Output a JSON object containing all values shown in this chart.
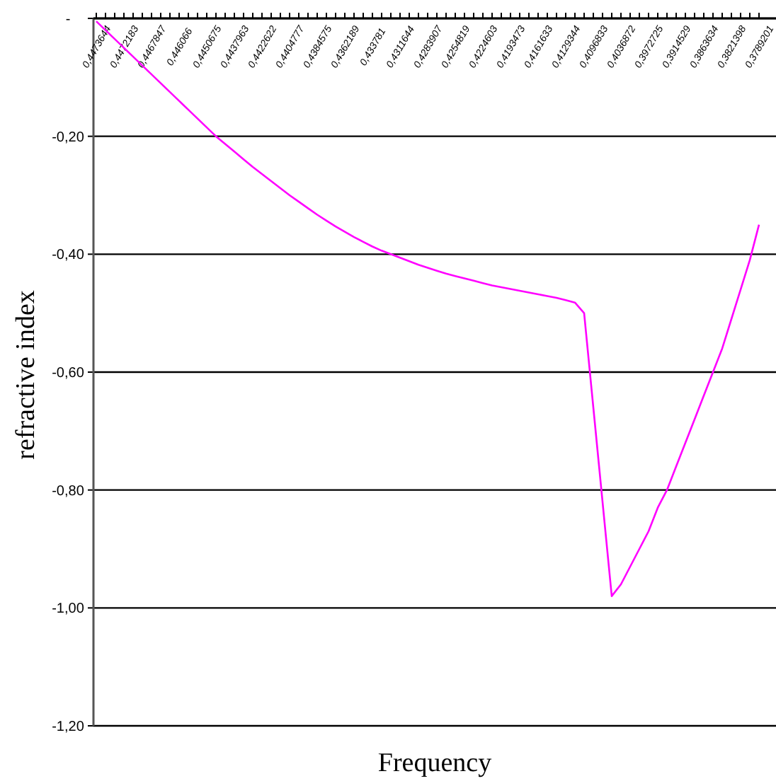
{
  "chart_data": {
    "type": "line",
    "xlabel": "Frequency",
    "ylabel": "refractive index",
    "categories": [
      "0,4473644",
      null,
      null,
      "0,4472183",
      null,
      null,
      "0,4467847",
      null,
      null,
      "0,446066",
      null,
      null,
      "0,4450675",
      null,
      null,
      "0,4437963",
      null,
      null,
      "0,4422622",
      null,
      null,
      "0,4404777",
      null,
      null,
      "0,4384575",
      null,
      null,
      "0,4362189",
      null,
      null,
      "0,433781",
      null,
      null,
      "0,4311644",
      null,
      null,
      "0,4283907",
      null,
      null,
      "0,4254819",
      null,
      null,
      "0,4224603",
      null,
      null,
      "0,4193473",
      null,
      null,
      "0,4161633",
      null,
      null,
      "0,4129344",
      null,
      null,
      "0,4096833",
      null,
      null,
      "0,4036872",
      null,
      null,
      "0,3972725",
      null,
      null,
      "0,3914529",
      null,
      null,
      "0,3863634",
      null,
      null,
      "0,3821398",
      null,
      null,
      "0,3789201"
    ],
    "series": [
      {
        "color": "#ff00ff",
        "values": [
          -0.005,
          -0.02,
          -0.035,
          -0.05,
          -0.065,
          -0.08,
          -0.095,
          -0.11,
          -0.125,
          -0.14,
          -0.155,
          -0.17,
          -0.185,
          -0.2,
          -0.213,
          -0.226,
          -0.239,
          -0.252,
          -0.264,
          -0.276,
          -0.288,
          -0.3,
          -0.311,
          -0.322,
          -0.333,
          -0.343,
          -0.353,
          -0.362,
          -0.371,
          -0.379,
          -0.387,
          -0.394,
          -0.4,
          -0.406,
          -0.412,
          -0.418,
          -0.423,
          -0.428,
          -0.433,
          -0.437,
          -0.441,
          -0.445,
          -0.449,
          -0.453,
          -0.456,
          -0.459,
          -0.462,
          -0.465,
          -0.468,
          -0.471,
          -0.474,
          -0.478,
          -0.482,
          -0.5,
          -0.66,
          -0.82,
          -0.98,
          -0.96,
          -0.93,
          -0.9,
          -0.87,
          -0.83,
          -0.8,
          -0.76,
          -0.72,
          -0.68,
          -0.64,
          -0.6,
          -0.56,
          -0.51,
          -0.46,
          -0.41,
          -0.35
        ]
      }
    ],
    "ylim": [
      -1.2,
      0
    ],
    "yticks": [
      {
        "value": 0,
        "label": "-"
      },
      {
        "value": -0.2,
        "label": "-0,20"
      },
      {
        "value": -0.4,
        "label": "-0,40"
      },
      {
        "value": -0.6,
        "label": "-0,60"
      },
      {
        "value": -0.8,
        "label": "-0,80"
      },
      {
        "value": -1,
        "label": "-1,00"
      },
      {
        "value": -1.2,
        "label": "-1,20"
      }
    ],
    "grid": "y",
    "marker": "none",
    "line_style": "solid"
  }
}
